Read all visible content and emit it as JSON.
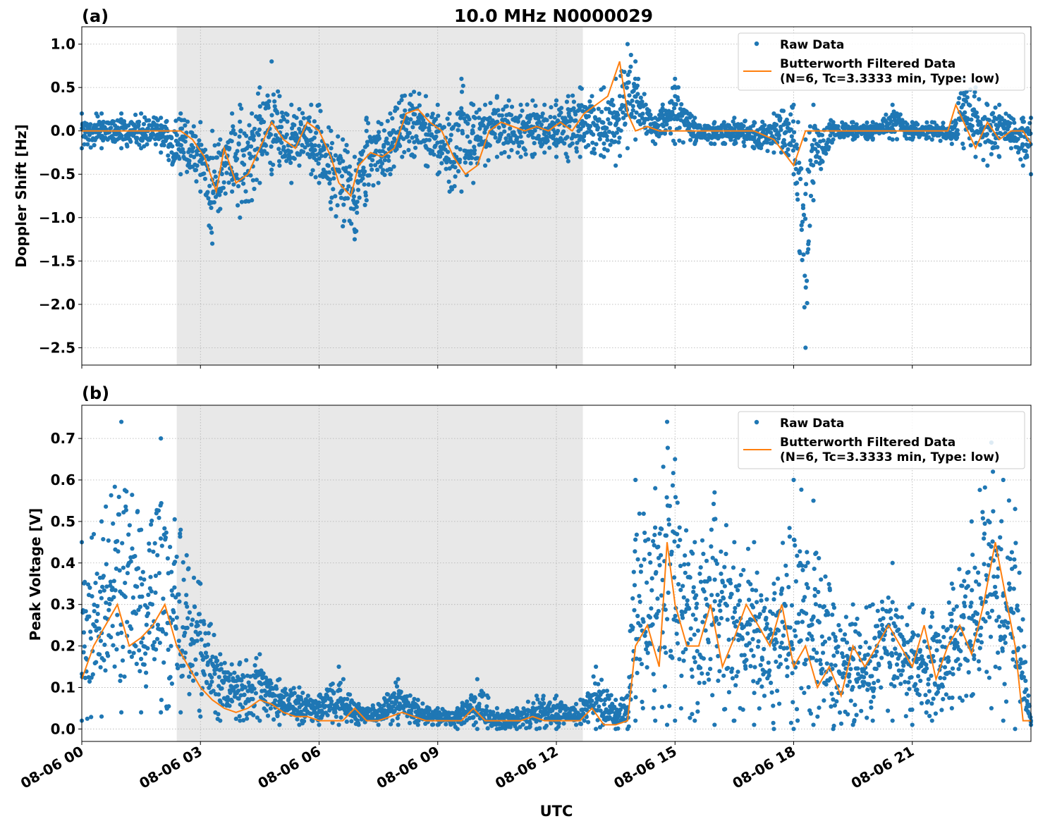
{
  "figure": {
    "title": "10.0 MHz N0000029",
    "xlabel": "UTC",
    "x_tick_labels": [
      "08-06 00",
      "08-06 03",
      "08-06 06",
      "08-06 09",
      "08-06 12",
      "08-06 15",
      "08-06 18",
      "08-06 21"
    ],
    "legend": {
      "raw_label": "Raw Data",
      "filtered_label_line1": "Butterworth Filtered Data",
      "filtered_label_line2": "(N=6, Tc=3.3333 min, Type: low)"
    },
    "colors": {
      "raw": "#1f77b4",
      "filtered": "#ff7f0e",
      "shade": "#e8e8e8",
      "grid": "#b0b0b0"
    }
  },
  "chart_data": [
    {
      "type": "scatter",
      "panel_label": "(a)",
      "ylabel": "Doppler Shift [Hz]",
      "xlim_hours": [
        0,
        24
      ],
      "ylim": [
        -2.7,
        1.2
      ],
      "y_ticks": [
        1.0,
        0.5,
        0.0,
        -0.5,
        -1.0,
        -1.5,
        -2.0,
        -2.5
      ],
      "y_tick_labels": [
        "1.0",
        "0.5",
        "0.0",
        "−0.5",
        "−1.0",
        "−1.5",
        "−2.0",
        "−2.5"
      ],
      "shaded_interval_hours": [
        2.4,
        12.67
      ],
      "grid": true,
      "legend_position": "top-right",
      "series": [
        {
          "name": "Raw Data",
          "style": "points",
          "x_hours": [
            0,
            0.5,
            1,
            1.5,
            2,
            2.5,
            3,
            3.3,
            3.5,
            3.8,
            4,
            4.3,
            4.5,
            4.8,
            5,
            5.3,
            5.5,
            5.8,
            6,
            6.3,
            6.6,
            6.9,
            7.2,
            7.5,
            7.8,
            8.1,
            8.4,
            8.7,
            9,
            9.3,
            9.6,
            9.9,
            10.2,
            10.5,
            10.8,
            11.1,
            11.4,
            11.7,
            12,
            12.3,
            12.6,
            12.9,
            13.2,
            13.5,
            13.8,
            14,
            14.5,
            15,
            15.5,
            16,
            16.5,
            17,
            17.5,
            18,
            18.3,
            18.5,
            19,
            19.5,
            20,
            20.5,
            21,
            21.5,
            22,
            22.3,
            22.6,
            22.9,
            23.2,
            23.5,
            23.8,
            24
          ],
          "min": [
            -0.2,
            -0.2,
            -0.2,
            -0.2,
            -0.25,
            -0.5,
            -0.7,
            -1.3,
            -0.9,
            -0.7,
            -1.0,
            -0.8,
            -0.6,
            -0.5,
            -0.4,
            -0.6,
            -0.4,
            -0.5,
            -0.6,
            -0.9,
            -1.1,
            -1.25,
            -0.8,
            -0.6,
            -0.5,
            -0.3,
            -0.3,
            -0.4,
            -0.5,
            -0.7,
            -0.7,
            -0.6,
            -0.4,
            -0.3,
            -0.3,
            -0.3,
            -0.3,
            -0.25,
            -0.3,
            -0.35,
            -0.3,
            -0.25,
            -0.3,
            -0.4,
            -0.2,
            -0.1,
            -0.15,
            -0.15,
            -0.15,
            -0.15,
            -0.15,
            -0.2,
            -0.25,
            -0.5,
            -2.5,
            -0.8,
            -0.1,
            -0.1,
            -0.1,
            -0.1,
            -0.1,
            -0.1,
            -0.15,
            -0.2,
            -0.3,
            -0.4,
            -0.3,
            -0.2,
            -0.4,
            -0.5
          ],
          "max": [
            0.2,
            0.2,
            0.2,
            0.2,
            0.15,
            0.2,
            0.1,
            0.0,
            -0.1,
            0.2,
            0.3,
            0.2,
            0.5,
            0.8,
            0.4,
            0.3,
            0.25,
            0.3,
            0.3,
            0.0,
            -0.1,
            -0.3,
            0.15,
            0.1,
            0.2,
            0.4,
            0.45,
            0.4,
            0.3,
            0.2,
            0.6,
            0.3,
            0.3,
            0.4,
            0.35,
            0.3,
            0.35,
            0.3,
            0.35,
            0.4,
            0.5,
            0.4,
            0.5,
            0.6,
            1.0,
            0.8,
            0.15,
            0.6,
            0.15,
            0.1,
            0.15,
            0.1,
            0.2,
            0.3,
            -0.1,
            0.3,
            0.1,
            0.1,
            0.1,
            0.3,
            0.1,
            0.1,
            0.1,
            0.6,
            0.5,
            0.3,
            0.3,
            0.15,
            0.15,
            0.15
          ]
        },
        {
          "name": "Butterworth Filtered Data (N=6, Tc=3.3333 min, Type: low)",
          "style": "line",
          "x_hours": [
            0,
            0.5,
            1,
            1.5,
            2,
            2.5,
            2.8,
            3.1,
            3.4,
            3.6,
            3.9,
            4.2,
            4.5,
            4.8,
            5.1,
            5.4,
            5.7,
            6,
            6.3,
            6.5,
            6.8,
            7,
            7.3,
            7.6,
            7.9,
            8.2,
            8.5,
            8.8,
            9.1,
            9.4,
            9.7,
            10,
            10.3,
            10.6,
            10.9,
            11.2,
            11.5,
            11.8,
            12.1,
            12.4,
            12.7,
            13,
            13.3,
            13.6,
            13.8,
            14,
            14.3,
            14.6,
            15,
            15.5,
            16,
            16.5,
            17,
            17.5,
            18,
            18.3,
            18.5,
            18.8,
            19.2,
            19.6,
            20,
            20.5,
            21,
            21.5,
            21.9,
            22.1,
            22.3,
            22.6,
            22.9,
            23.2,
            23.5,
            23.8,
            24
          ],
          "y": [
            0,
            0,
            0,
            0,
            0,
            0,
            -0.1,
            -0.3,
            -0.7,
            -0.2,
            -0.6,
            -0.5,
            -0.2,
            0.1,
            -0.1,
            -0.2,
            0.1,
            0.0,
            -0.3,
            -0.6,
            -0.75,
            -0.4,
            -0.25,
            -0.3,
            -0.2,
            0.2,
            0.25,
            0.1,
            0.0,
            -0.3,
            -0.5,
            -0.4,
            0.0,
            0.1,
            0.05,
            0.0,
            0.05,
            0.0,
            0.1,
            0.0,
            0.2,
            0.3,
            0.4,
            0.8,
            0.2,
            0.0,
            0.05,
            0.0,
            0.0,
            0.0,
            0.0,
            0.0,
            0.0,
            -0.1,
            -0.4,
            0.0,
            0.0,
            0.0,
            0.0,
            0.0,
            0.0,
            0.0,
            0.0,
            0.0,
            0.0,
            0.3,
            0.1,
            -0.2,
            0.1,
            -0.1,
            0.0,
            0.0,
            -0.15
          ]
        }
      ]
    },
    {
      "type": "scatter",
      "panel_label": "(b)",
      "ylabel": "Peak Voltage [V]",
      "xlim_hours": [
        0,
        24
      ],
      "ylim": [
        -0.03,
        0.78
      ],
      "y_ticks": [
        0.0,
        0.1,
        0.2,
        0.3,
        0.4,
        0.5,
        0.6,
        0.7
      ],
      "y_tick_labels": [
        "0.0",
        "0.1",
        "0.2",
        "0.3",
        "0.4",
        "0.5",
        "0.6",
        "0.7"
      ],
      "shaded_interval_hours": [
        2.4,
        12.67
      ],
      "grid": true,
      "legend_position": "top-right",
      "series": [
        {
          "name": "Raw Data",
          "style": "points",
          "x_hours": [
            0,
            0.5,
            1,
            1.5,
            2,
            2.5,
            3,
            3.5,
            4,
            4.5,
            5,
            5.5,
            6,
            6.5,
            7,
            7.5,
            8,
            8.5,
            9,
            9.5,
            10,
            10.5,
            11,
            11.5,
            12,
            12.5,
            13,
            13.5,
            13.8,
            14,
            14.5,
            14.8,
            15,
            15.5,
            16,
            16.5,
            17,
            17.5,
            18,
            18.5,
            19,
            19.5,
            20,
            20.5,
            21,
            21.5,
            22,
            22.5,
            23,
            23.3,
            23.6,
            24
          ],
          "min": [
            0.02,
            0.03,
            0.04,
            0.04,
            0.04,
            0.04,
            0.03,
            0.02,
            0.02,
            0.02,
            0.01,
            0.01,
            0.01,
            0.01,
            0.01,
            0.01,
            0.01,
            0.01,
            0.01,
            0.0,
            0.0,
            0.0,
            0.0,
            0.0,
            0.0,
            0.01,
            0.0,
            0.0,
            0.0,
            0.02,
            0.02,
            0.01,
            0.02,
            0.02,
            0.01,
            0.02,
            0.01,
            0.0,
            0.0,
            0.01,
            0.0,
            0.01,
            0.02,
            0.02,
            0.01,
            0.02,
            0.05,
            0.08,
            0.05,
            0.02,
            0.0,
            0.01
          ],
          "max": [
            0.45,
            0.5,
            0.74,
            0.48,
            0.7,
            0.48,
            0.35,
            0.18,
            0.16,
            0.18,
            0.12,
            0.1,
            0.08,
            0.15,
            0.06,
            0.06,
            0.12,
            0.07,
            0.05,
            0.05,
            0.12,
            0.05,
            0.05,
            0.08,
            0.08,
            0.06,
            0.15,
            0.07,
            0.08,
            0.6,
            0.58,
            0.74,
            0.65,
            0.45,
            0.57,
            0.45,
            0.45,
            0.35,
            0.6,
            0.55,
            0.3,
            0.3,
            0.3,
            0.4,
            0.3,
            0.28,
            0.35,
            0.5,
            0.69,
            0.6,
            0.53,
            0.02
          ]
        },
        {
          "name": "Butterworth Filtered Data (N=6, Tc=3.3333 min, Type: low)",
          "style": "line",
          "x_hours": [
            0,
            0.3,
            0.6,
            0.9,
            1.2,
            1.5,
            1.8,
            2.1,
            2.4,
            2.7,
            3.0,
            3.3,
            3.6,
            3.9,
            4.2,
            4.5,
            4.8,
            5.1,
            5.4,
            5.7,
            6.0,
            6.3,
            6.6,
            6.9,
            7.2,
            7.5,
            7.8,
            8.1,
            8.4,
            8.7,
            9,
            9.3,
            9.6,
            9.9,
            10.2,
            10.5,
            10.8,
            11.1,
            11.4,
            11.7,
            12,
            12.3,
            12.6,
            12.9,
            13.2,
            13.5,
            13.8,
            14,
            14.3,
            14.6,
            14.8,
            15,
            15.3,
            15.6,
            15.9,
            16.2,
            16.5,
            16.8,
            17.1,
            17.4,
            17.7,
            18,
            18.3,
            18.6,
            18.9,
            19.2,
            19.5,
            19.8,
            20.1,
            20.4,
            20.7,
            21,
            21.3,
            21.6,
            21.9,
            22.2,
            22.5,
            22.8,
            23.1,
            23.4,
            23.6,
            23.8,
            24
          ],
          "y": [
            0.12,
            0.2,
            0.25,
            0.3,
            0.2,
            0.22,
            0.25,
            0.3,
            0.2,
            0.15,
            0.1,
            0.07,
            0.05,
            0.04,
            0.05,
            0.07,
            0.06,
            0.04,
            0.03,
            0.03,
            0.02,
            0.02,
            0.02,
            0.05,
            0.02,
            0.02,
            0.03,
            0.04,
            0.03,
            0.02,
            0.02,
            0.02,
            0.02,
            0.05,
            0.02,
            0.02,
            0.02,
            0.02,
            0.03,
            0.02,
            0.02,
            0.02,
            0.02,
            0.05,
            0.01,
            0.01,
            0.02,
            0.2,
            0.25,
            0.15,
            0.45,
            0.3,
            0.2,
            0.2,
            0.3,
            0.15,
            0.22,
            0.3,
            0.25,
            0.2,
            0.3,
            0.15,
            0.2,
            0.1,
            0.15,
            0.08,
            0.2,
            0.15,
            0.2,
            0.25,
            0.2,
            0.15,
            0.25,
            0.12,
            0.2,
            0.25,
            0.18,
            0.3,
            0.45,
            0.3,
            0.2,
            0.02,
            0.02
          ]
        }
      ]
    }
  ]
}
